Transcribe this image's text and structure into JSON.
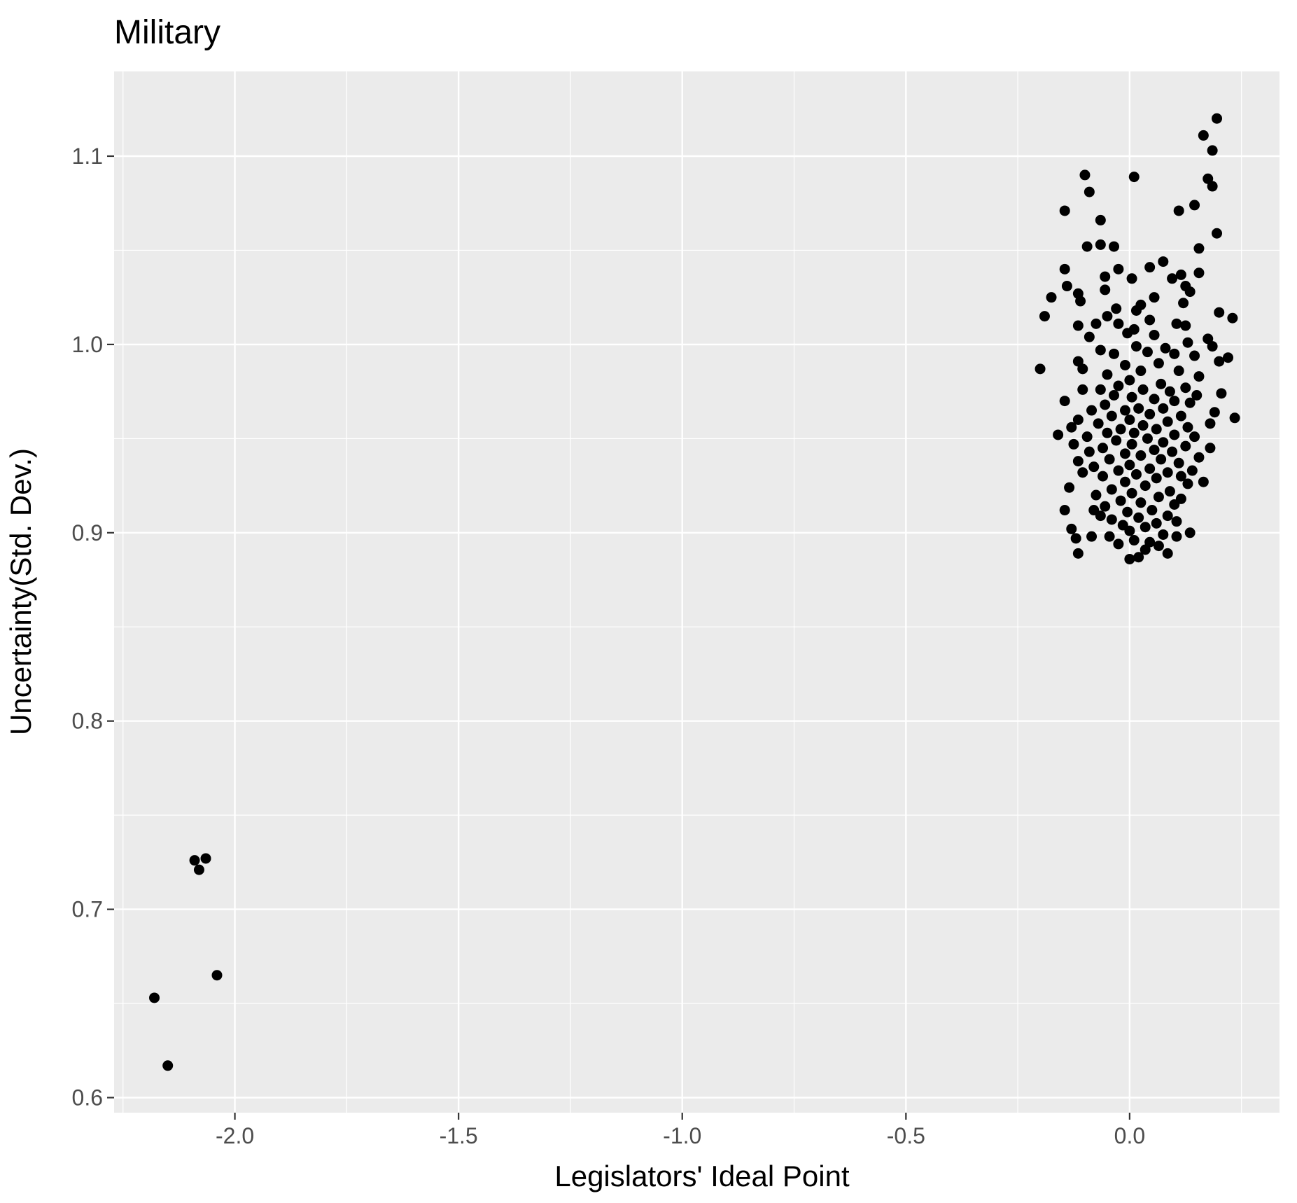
{
  "chart_data": {
    "type": "scatter",
    "title": "Military",
    "xlabel": "Legislators' Ideal Point",
    "ylabel": "Uncertainty(Std. Dev.)",
    "xlim": [
      -2.27,
      0.335
    ],
    "ylim": [
      0.592,
      1.145
    ],
    "x_ticks": [
      -2.0,
      -1.5,
      -1.0,
      -0.5,
      0.0
    ],
    "x_tick_labels": [
      "-2.0",
      "-1.5",
      "-1.0",
      "-0.5",
      "0.0"
    ],
    "y_ticks": [
      0.6,
      0.7,
      0.8,
      0.9,
      1.0,
      1.1
    ],
    "y_tick_labels": [
      "0.6",
      "0.7",
      "0.8",
      "0.9",
      "1.0",
      "1.1"
    ],
    "grid": true,
    "colors": {
      "panel": "#ebebeb",
      "grid": "#ffffff",
      "point": "#000000",
      "tick_text": "#4d4d4d"
    },
    "points": [
      {
        "x": -2.18,
        "y": 0.653
      },
      {
        "x": -2.15,
        "y": 0.617
      },
      {
        "x": -2.09,
        "y": 0.726
      },
      {
        "x": -2.08,
        "y": 0.721
      },
      {
        "x": -2.065,
        "y": 0.727
      },
      {
        "x": -2.04,
        "y": 0.665
      },
      {
        "x": 0.195,
        "y": 1.12
      },
      {
        "x": 0.165,
        "y": 1.111
      },
      {
        "x": 0.185,
        "y": 1.103
      },
      {
        "x": -0.1,
        "y": 1.09
      },
      {
        "x": 0.01,
        "y": 1.089
      },
      {
        "x": 0.175,
        "y": 1.088
      },
      {
        "x": 0.185,
        "y": 1.084
      },
      {
        "x": -0.09,
        "y": 1.081
      },
      {
        "x": 0.145,
        "y": 1.074
      },
      {
        "x": -0.145,
        "y": 1.071
      },
      {
        "x": 0.11,
        "y": 1.071
      },
      {
        "x": -0.065,
        "y": 1.066
      },
      {
        "x": 0.195,
        "y": 1.059
      },
      {
        "x": -0.095,
        "y": 1.052
      },
      {
        "x": -0.065,
        "y": 1.053
      },
      {
        "x": -0.035,
        "y": 1.052
      },
      {
        "x": 0.155,
        "y": 1.051
      },
      {
        "x": 0.075,
        "y": 1.044
      },
      {
        "x": -0.145,
        "y": 1.04
      },
      {
        "x": 0.045,
        "y": 1.041
      },
      {
        "x": -0.025,
        "y": 1.04
      },
      {
        "x": -0.055,
        "y": 1.036
      },
      {
        "x": 0.095,
        "y": 1.035
      },
      {
        "x": 0.115,
        "y": 1.037
      },
      {
        "x": 0.155,
        "y": 1.038
      },
      {
        "x": 0.005,
        "y": 1.035
      },
      {
        "x": -0.14,
        "y": 1.031
      },
      {
        "x": 0.125,
        "y": 1.031
      },
      {
        "x": 0.135,
        "y": 1.028
      },
      {
        "x": -0.055,
        "y": 1.029
      },
      {
        "x": -0.115,
        "y": 1.027
      },
      {
        "x": -0.175,
        "y": 1.025
      },
      {
        "x": 0.025,
        "y": 1.021
      },
      {
        "x": 0.055,
        "y": 1.025
      },
      {
        "x": -0.11,
        "y": 1.023
      },
      {
        "x": -0.03,
        "y": 1.019
      },
      {
        "x": 0.12,
        "y": 1.022
      },
      {
        "x": 0.015,
        "y": 1.018
      },
      {
        "x": -0.19,
        "y": 1.015
      },
      {
        "x": -0.05,
        "y": 1.015
      },
      {
        "x": 0.045,
        "y": 1.013
      },
      {
        "x": 0.23,
        "y": 1.014
      },
      {
        "x": 0.2,
        "y": 1.017
      },
      {
        "x": -0.025,
        "y": 1.011
      },
      {
        "x": -0.075,
        "y": 1.011
      },
      {
        "x": 0.105,
        "y": 1.011
      },
      {
        "x": 0.125,
        "y": 1.01
      },
      {
        "x": -0.115,
        "y": 1.01
      },
      {
        "x": -0.005,
        "y": 1.006
      },
      {
        "x": 0.055,
        "y": 1.005
      },
      {
        "x": 0.175,
        "y": 1.003
      },
      {
        "x": -0.09,
        "y": 1.004
      },
      {
        "x": 0.01,
        "y": 1.008
      },
      {
        "x": 0.08,
        "y": 0.998
      },
      {
        "x": 0.13,
        "y": 1.001
      },
      {
        "x": -0.065,
        "y": 0.997
      },
      {
        "x": 0.015,
        "y": 0.999
      },
      {
        "x": 0.185,
        "y": 0.999
      },
      {
        "x": 0.04,
        "y": 0.996
      },
      {
        "x": -0.035,
        "y": 0.995
      },
      {
        "x": 0.1,
        "y": 0.995
      },
      {
        "x": 0.145,
        "y": 0.994
      },
      {
        "x": 0.22,
        "y": 0.993
      },
      {
        "x": 0.2,
        "y": 0.991
      },
      {
        "x": -0.115,
        "y": 0.991
      },
      {
        "x": -0.01,
        "y": 0.989
      },
      {
        "x": 0.065,
        "y": 0.99
      },
      {
        "x": -0.2,
        "y": 0.987
      },
      {
        "x": -0.105,
        "y": 0.987
      },
      {
        "x": 0.025,
        "y": 0.986
      },
      {
        "x": 0.11,
        "y": 0.986
      },
      {
        "x": -0.05,
        "y": 0.984
      },
      {
        "x": 0.155,
        "y": 0.983
      },
      {
        "x": 0.0,
        "y": 0.981
      },
      {
        "x": 0.07,
        "y": 0.979
      },
      {
        "x": -0.025,
        "y": 0.978
      },
      {
        "x": 0.125,
        "y": 0.977
      },
      {
        "x": -0.065,
        "y": 0.976
      },
      {
        "x": -0.105,
        "y": 0.976
      },
      {
        "x": 0.03,
        "y": 0.976
      },
      {
        "x": 0.09,
        "y": 0.975
      },
      {
        "x": 0.205,
        "y": 0.974
      },
      {
        "x": 0.15,
        "y": 0.973
      },
      {
        "x": -0.035,
        "y": 0.973
      },
      {
        "x": 0.005,
        "y": 0.972
      },
      {
        "x": 0.055,
        "y": 0.971
      },
      {
        "x": -0.145,
        "y": 0.97
      },
      {
        "x": 0.1,
        "y": 0.97
      },
      {
        "x": -0.055,
        "y": 0.968
      },
      {
        "x": 0.135,
        "y": 0.969
      },
      {
        "x": 0.02,
        "y": 0.966
      },
      {
        "x": -0.01,
        "y": 0.965
      },
      {
        "x": 0.075,
        "y": 0.966
      },
      {
        "x": -0.085,
        "y": 0.965
      },
      {
        "x": 0.045,
        "y": 0.963
      },
      {
        "x": 0.19,
        "y": 0.964
      },
      {
        "x": -0.04,
        "y": 0.962
      },
      {
        "x": 0.115,
        "y": 0.962
      },
      {
        "x": 0.235,
        "y": 0.961
      },
      {
        "x": -0.115,
        "y": 0.96
      },
      {
        "x": 0.0,
        "y": 0.96
      },
      {
        "x": 0.085,
        "y": 0.959
      },
      {
        "x": 0.18,
        "y": 0.958
      },
      {
        "x": -0.07,
        "y": 0.958
      },
      {
        "x": 0.03,
        "y": 0.957
      },
      {
        "x": -0.13,
        "y": 0.956
      },
      {
        "x": 0.13,
        "y": 0.956
      },
      {
        "x": -0.02,
        "y": 0.955
      },
      {
        "x": 0.06,
        "y": 0.955
      },
      {
        "x": -0.05,
        "y": 0.953
      },
      {
        "x": 0.01,
        "y": 0.953
      },
      {
        "x": -0.16,
        "y": 0.952
      },
      {
        "x": 0.1,
        "y": 0.952
      },
      {
        "x": 0.145,
        "y": 0.951
      },
      {
        "x": -0.095,
        "y": 0.951
      },
      {
        "x": 0.04,
        "y": 0.95
      },
      {
        "x": -0.03,
        "y": 0.949
      },
      {
        "x": 0.075,
        "y": 0.948
      },
      {
        "x": -0.125,
        "y": 0.947
      },
      {
        "x": 0.005,
        "y": 0.947
      },
      {
        "x": 0.125,
        "y": 0.946
      },
      {
        "x": 0.18,
        "y": 0.945
      },
      {
        "x": -0.06,
        "y": 0.945
      },
      {
        "x": 0.055,
        "y": 0.944
      },
      {
        "x": -0.09,
        "y": 0.943
      },
      {
        "x": 0.095,
        "y": 0.943
      },
      {
        "x": -0.01,
        "y": 0.942
      },
      {
        "x": 0.025,
        "y": 0.941
      },
      {
        "x": 0.155,
        "y": 0.94
      },
      {
        "x": -0.045,
        "y": 0.939
      },
      {
        "x": 0.07,
        "y": 0.939
      },
      {
        "x": -0.115,
        "y": 0.938
      },
      {
        "x": 0.11,
        "y": 0.937
      },
      {
        "x": 0.0,
        "y": 0.936
      },
      {
        "x": -0.08,
        "y": 0.935
      },
      {
        "x": 0.045,
        "y": 0.934
      },
      {
        "x": 0.14,
        "y": 0.933
      },
      {
        "x": -0.025,
        "y": 0.933
      },
      {
        "x": -0.105,
        "y": 0.932
      },
      {
        "x": 0.085,
        "y": 0.932
      },
      {
        "x": 0.015,
        "y": 0.931
      },
      {
        "x": -0.06,
        "y": 0.93
      },
      {
        "x": 0.115,
        "y": 0.93
      },
      {
        "x": 0.06,
        "y": 0.929
      },
      {
        "x": 0.165,
        "y": 0.927
      },
      {
        "x": -0.01,
        "y": 0.927
      },
      {
        "x": 0.13,
        "y": 0.926
      },
      {
        "x": -0.135,
        "y": 0.924
      },
      {
        "x": 0.035,
        "y": 0.925
      },
      {
        "x": -0.04,
        "y": 0.923
      },
      {
        "x": 0.09,
        "y": 0.922
      },
      {
        "x": 0.005,
        "y": 0.921
      },
      {
        "x": -0.075,
        "y": 0.92
      },
      {
        "x": 0.065,
        "y": 0.919
      },
      {
        "x": 0.115,
        "y": 0.918
      },
      {
        "x": -0.02,
        "y": 0.917
      },
      {
        "x": 0.025,
        "y": 0.916
      },
      {
        "x": -0.055,
        "y": 0.914
      },
      {
        "x": 0.1,
        "y": 0.915
      },
      {
        "x": -0.145,
        "y": 0.912
      },
      {
        "x": -0.08,
        "y": 0.912
      },
      {
        "x": 0.05,
        "y": 0.912
      },
      {
        "x": -0.005,
        "y": 0.911
      },
      {
        "x": -0.065,
        "y": 0.909
      },
      {
        "x": 0.085,
        "y": 0.909
      },
      {
        "x": 0.02,
        "y": 0.908
      },
      {
        "x": -0.04,
        "y": 0.907
      },
      {
        "x": 0.105,
        "y": 0.906
      },
      {
        "x": 0.06,
        "y": 0.905
      },
      {
        "x": -0.015,
        "y": 0.904
      },
      {
        "x": 0.035,
        "y": 0.903
      },
      {
        "x": -0.13,
        "y": 0.902
      },
      {
        "x": 0.0,
        "y": 0.901
      },
      {
        "x": 0.135,
        "y": 0.9
      },
      {
        "x": 0.075,
        "y": 0.899
      },
      {
        "x": -0.045,
        "y": 0.898
      },
      {
        "x": -0.085,
        "y": 0.898
      },
      {
        "x": 0.105,
        "y": 0.898
      },
      {
        "x": -0.12,
        "y": 0.897
      },
      {
        "x": 0.01,
        "y": 0.896
      },
      {
        "x": 0.045,
        "y": 0.895
      },
      {
        "x": -0.025,
        "y": 0.894
      },
      {
        "x": 0.065,
        "y": 0.893
      },
      {
        "x": 0.035,
        "y": 0.891
      },
      {
        "x": -0.115,
        "y": 0.889
      },
      {
        "x": 0.085,
        "y": 0.889
      },
      {
        "x": 0.02,
        "y": 0.887
      },
      {
        "x": 0.0,
        "y": 0.886
      }
    ]
  }
}
